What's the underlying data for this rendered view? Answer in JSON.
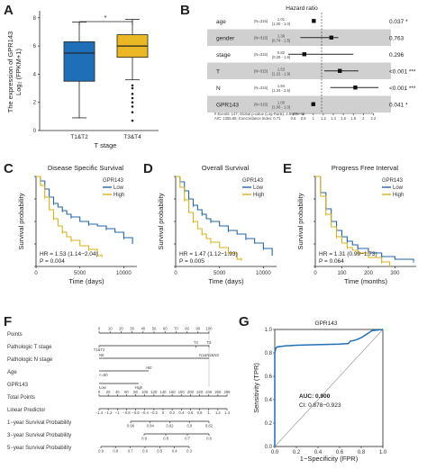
{
  "panels": {
    "A": {
      "letter": "A",
      "ylabel_line1": "The expression of GPR143",
      "ylabel_line2": "Log₂ (FPKM+1)",
      "xlabel": "T stage",
      "categories": [
        "T1&T2",
        "T3&T4"
      ],
      "significance": "*",
      "yticks": [
        "0",
        "2",
        "4",
        "6",
        "8"
      ]
    },
    "B": {
      "letter": "B",
      "title": "Hazard ratio",
      "rows": [
        {
          "label": "age",
          "n": "(N=315)",
          "hr": "1.01",
          "ci": "(1.00 - 1.0)",
          "p": "0.037 *"
        },
        {
          "label": "gender",
          "n": "(N=315)",
          "hr": "1.36",
          "ci": "(0.74 - 1.5)",
          "p": "0.763"
        },
        {
          "label": "stage",
          "n": "(N=315)",
          "hr": "0.82",
          "ci": "(0.26 - 1.8)",
          "p": "0.296"
        },
        {
          "label": "T",
          "n": "(N=315)",
          "hr": "1.53",
          "ci": "(1.22 - 1.9)",
          "p": "<0.001 ***"
        },
        {
          "label": "N",
          "n": "(N=315)",
          "hr": "1.84",
          "ci": "(1.34 - 2.5)",
          "p": "<0.001 ***"
        },
        {
          "label": "GPR143",
          "n": "(N=315)",
          "hr": "1.00",
          "ci": "(1.00 - 1.0)",
          "p": "0.041 *"
        }
      ],
      "footnote1": "# Events: 147; Global p-value (Log-Rank): 2.9959e-11",
      "footnote2": "AIC: 1355.85; Concordance Index: 0.71",
      "xticks": [
        "0.6",
        "0.8",
        "1",
        "1.2",
        "1.4",
        "1.6",
        "1.8",
        "2",
        "2.2"
      ]
    },
    "C": {
      "letter": "C",
      "title": "Disease Specific Survival",
      "ylabel": "Survival probability",
      "xlabel": "Time (days)",
      "xticks": [
        "0",
        "5000",
        "10000"
      ],
      "legend_title": "GPR143",
      "legend": [
        "Low",
        "High"
      ],
      "hr_text": "HR = 1.53 (1.14−2.04)",
      "p_text": "P = 0.004"
    },
    "D": {
      "letter": "D",
      "title": "Overall Survival",
      "ylabel": "Survival probability",
      "xlabel": "Time (days)",
      "xticks": [
        "0",
        "5000",
        "10000"
      ],
      "legend_title": "GPR143",
      "legend": [
        "Low",
        "High"
      ],
      "hr_text": "HR = 1.47 (1.12−1.93)",
      "p_text": "P = 0.005"
    },
    "E": {
      "letter": "E",
      "title": "Progress Free Interval",
      "ylabel": "Survival probability",
      "xlabel": "Time (months)",
      "xticks": [
        "0",
        "100",
        "200",
        "300"
      ],
      "legend_title": "GPR143",
      "legend": [
        "Low",
        "High"
      ],
      "hr_text": "HR = 1.31 (0.99−1.73)",
      "p_text": "P = 0.064"
    },
    "F": {
      "letter": "F",
      "rows": [
        "Points",
        "Pathologic T stage",
        "Pathologic N stage",
        "Age",
        "GPR143",
        "Total Points",
        "Linear Predictor",
        "1−year Survival Probability",
        "3−year Survival Probability",
        "5−year Survival Probability"
      ],
      "points_ticks": [
        "0",
        "10",
        "20",
        "30",
        "40",
        "50",
        "60",
        "70",
        "80",
        "90",
        "100"
      ],
      "t_labels": [
        "T1&T2",
        "T4",
        "T3"
      ],
      "n_labels": [
        "N0",
        "N1&N2&N3"
      ],
      "age_labels": [
        "<=60",
        ">60"
      ],
      "gpr_labels": [
        "Low",
        "High"
      ],
      "total_ticks": [
        "0",
        "20",
        "40",
        "60",
        "80",
        "100",
        "120",
        "140",
        "160",
        "180",
        "200",
        "220",
        "240",
        "260",
        "289"
      ],
      "lp_ticks": [
        "−1.4",
        "−1.2",
        "−1",
        "−0.8",
        "−0.6",
        "−0.4",
        "−0.2",
        "0",
        "0.2",
        "0.4",
        "0.6",
        "0.8",
        "1",
        "1.2",
        "1.4"
      ],
      "y1_ticks": [
        "0.96",
        "0.94",
        "0.92",
        "0.9",
        "0.82"
      ],
      "y3_ticks": [
        "0.9",
        "0.8",
        "0.7",
        "0.6"
      ],
      "y5_ticks": [
        "0.9",
        "0.8",
        "0.7",
        "0.6",
        "0.5",
        "0.4",
        "0.3"
      ]
    },
    "G": {
      "letter": "G",
      "title": "GPR143",
      "auc_text": "AUC: 0.900",
      "ci_text": "CI: 0.878−0.923",
      "ylabel": "Sensitivity (TPR)",
      "xlabel": "1−Specificity (FPR)",
      "ticks": [
        "0.0",
        "0.2",
        "0.4",
        "0.6",
        "0.8",
        "1.0"
      ]
    }
  },
  "colors": {
    "low": "#2066a8",
    "high": "#d9b21a",
    "box_low": "#1f6fb8",
    "box_high": "#e9b824",
    "roc": "#1f6fb8",
    "band": "#d0d0d0"
  },
  "chart_data": [
    {
      "type": "box",
      "categories": [
        "T1&T2",
        "T3&T4"
      ],
      "series": [
        {
          "name": "T1&T2",
          "min": 0.9,
          "q1": 3.5,
          "median": 5.5,
          "q3": 6.3,
          "max": 7.7
        },
        {
          "name": "T3&T4",
          "min": 3.6,
          "q1": 5.2,
          "median": 6.0,
          "q3": 6.8,
          "max": 7.9,
          "outliers": [
            3.2,
            3.0,
            2.6,
            2.3,
            2.0,
            1.7,
            1.3,
            0.7
          ]
        }
      ],
      "ylabel": "The expression of GPR143 Log₂ (FPKM+1)",
      "xlabel": "T stage",
      "ylim": [
        0,
        8.5
      ]
    },
    {
      "type": "line",
      "name": "Disease Specific Survival",
      "xlabel": "Time (days)",
      "ylabel": "Survival probability",
      "xlim": [
        0,
        11500
      ],
      "ylim": [
        0,
        1
      ],
      "series": [
        {
          "name": "Low",
          "x": [
            0,
            500,
            1000,
            1500,
            2000,
            2500,
            3000,
            3500,
            4000,
            5000,
            6000,
            7000,
            8000,
            9000,
            10000,
            11000
          ],
          "y": [
            1.0,
            0.95,
            0.86,
            0.77,
            0.7,
            0.66,
            0.62,
            0.58,
            0.55,
            0.5,
            0.47,
            0.45,
            0.42,
            0.38,
            0.32,
            0.25
          ]
        },
        {
          "name": "High",
          "x": [
            0,
            500,
            1000,
            1500,
            2000,
            2500,
            3000,
            3500,
            4000,
            5000,
            6000,
            7000,
            7500
          ],
          "y": [
            1.0,
            0.9,
            0.77,
            0.63,
            0.53,
            0.45,
            0.38,
            0.33,
            0.29,
            0.23,
            0.19,
            0.12,
            0.12
          ]
        }
      ]
    },
    {
      "type": "line",
      "name": "Overall Survival",
      "xlabel": "Time (days)",
      "ylabel": "Survival probability",
      "xlim": [
        0,
        11500
      ],
      "ylim": [
        0,
        1
      ],
      "series": [
        {
          "name": "Low",
          "x": [
            0,
            500,
            1000,
            1500,
            2000,
            2500,
            3000,
            3500,
            4000,
            5000,
            6000,
            7000,
            8000,
            9000,
            10000,
            11000
          ],
          "y": [
            1.0,
            0.94,
            0.84,
            0.75,
            0.68,
            0.63,
            0.58,
            0.53,
            0.5,
            0.45,
            0.4,
            0.36,
            0.31,
            0.26,
            0.2,
            0.12
          ]
        },
        {
          "name": "High",
          "x": [
            0,
            500,
            1000,
            1500,
            2000,
            2500,
            3000,
            3500,
            4000,
            5000,
            6000,
            7000,
            7500
          ],
          "y": [
            1.0,
            0.88,
            0.74,
            0.6,
            0.5,
            0.42,
            0.36,
            0.31,
            0.27,
            0.21,
            0.15,
            0.08,
            0.08
          ]
        }
      ]
    },
    {
      "type": "line",
      "name": "Progress Free Interval",
      "xlabel": "Time (months)",
      "ylabel": "Survival probability",
      "xlim": [
        0,
        380
      ],
      "ylim": [
        0,
        1
      ],
      "series": [
        {
          "name": "Low",
          "x": [
            0,
            20,
            40,
            60,
            80,
            100,
            120,
            140,
            160,
            200,
            250,
            300,
            370
          ],
          "y": [
            1.0,
            0.82,
            0.64,
            0.5,
            0.4,
            0.33,
            0.28,
            0.24,
            0.2,
            0.15,
            0.11,
            0.08,
            0.06
          ]
        },
        {
          "name": "High",
          "x": [
            0,
            20,
            40,
            60,
            80,
            100,
            120,
            140,
            160,
            200,
            250,
            280
          ],
          "y": [
            1.0,
            0.78,
            0.58,
            0.44,
            0.33,
            0.26,
            0.21,
            0.18,
            0.15,
            0.1,
            0.05,
            0.0
          ]
        }
      ]
    },
    {
      "type": "line",
      "name": "GPR143",
      "xlabel": "1−Specificity (FPR)",
      "ylabel": "Sensitivity (TPR)",
      "xlim": [
        0,
        1
      ],
      "ylim": [
        0,
        1
      ],
      "series": [
        {
          "name": "ROC",
          "x": [
            0.0,
            0.0,
            0.01,
            0.02,
            0.05,
            0.1,
            0.2,
            0.4,
            0.6,
            0.68,
            0.7,
            0.75,
            0.8,
            0.85,
            0.9,
            1.0
          ],
          "y": [
            0.0,
            0.8,
            0.84,
            0.85,
            0.855,
            0.86,
            0.865,
            0.87,
            0.875,
            0.88,
            0.9,
            0.91,
            0.93,
            0.96,
            0.99,
            1.0
          ]
        }
      ]
    }
  ]
}
